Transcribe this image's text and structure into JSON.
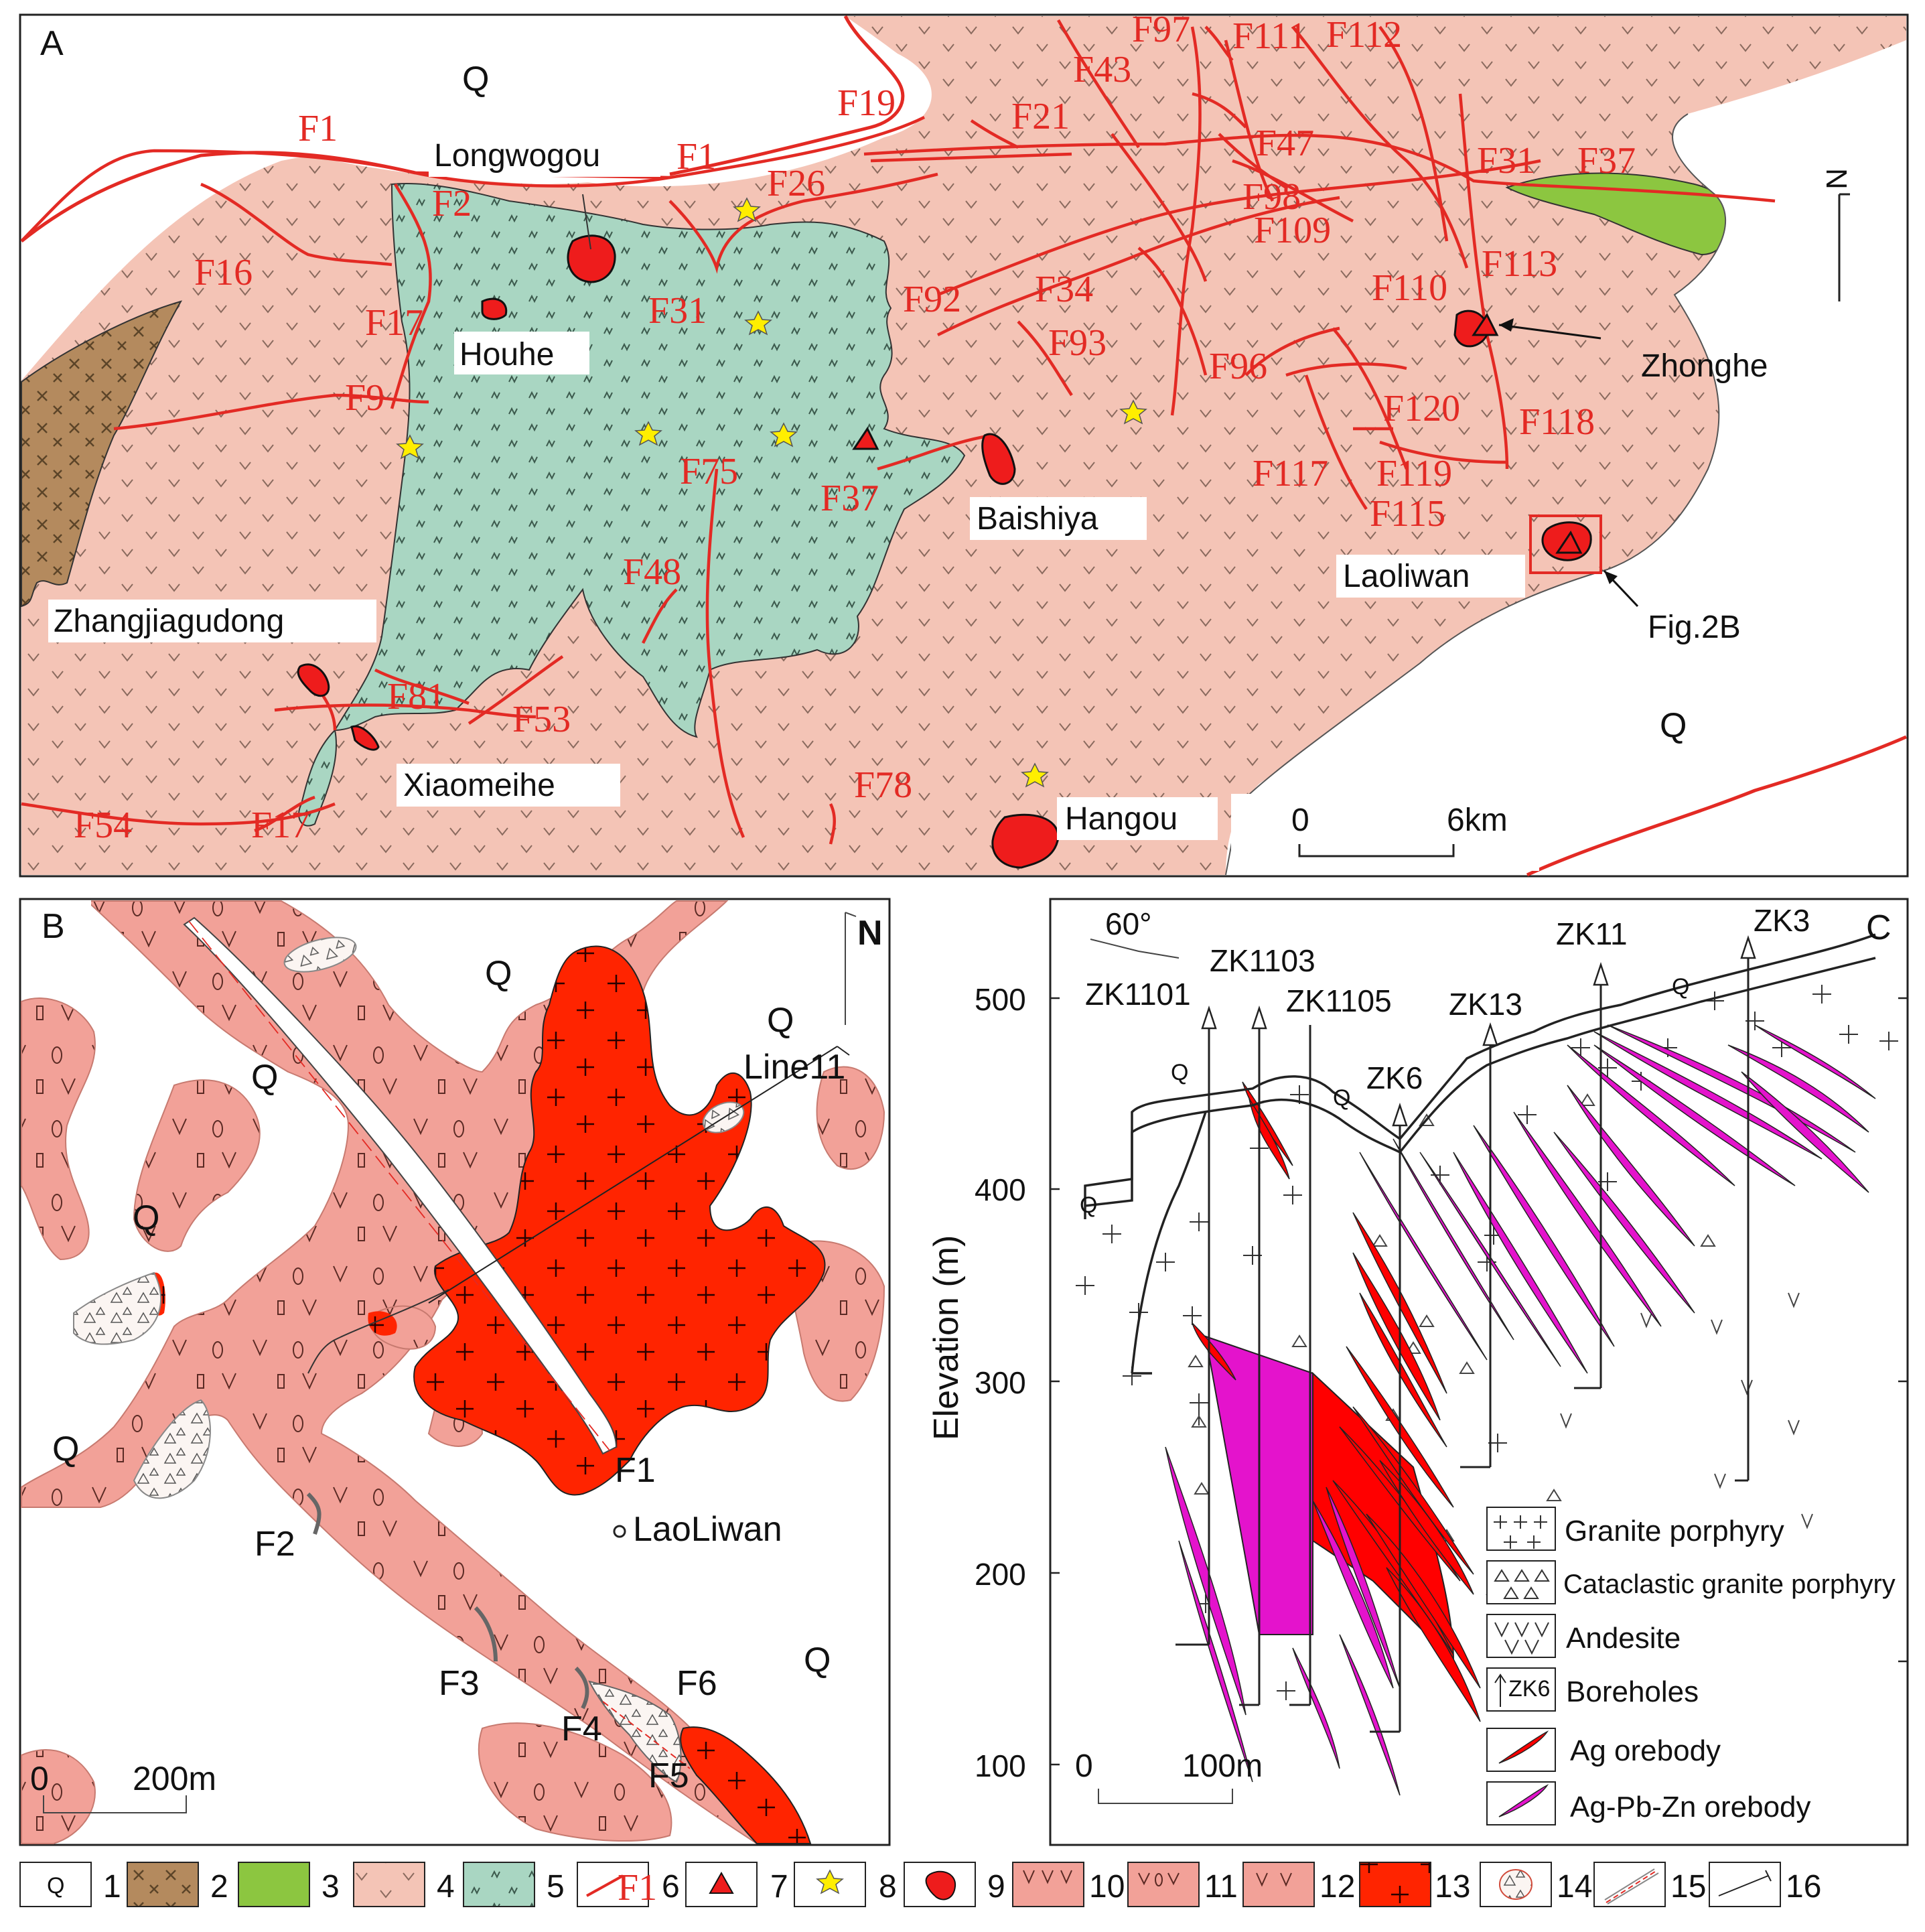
{
  "panel_a": {
    "panel_letter": "A",
    "quaternary_labels": [
      "Q",
      "Q"
    ],
    "north_label": "N",
    "scale": {
      "start": "0",
      "end": "6km"
    },
    "faults": [
      "F1",
      "F1",
      "F2",
      "F16",
      "F17",
      "F9",
      "F19",
      "F26",
      "F31",
      "F43",
      "F21",
      "F97",
      "F111",
      "F112",
      "F47",
      "F31",
      "F37",
      "F98",
      "F109",
      "F113",
      "F110",
      "F92",
      "F34",
      "F93",
      "F96",
      "F120",
      "F118",
      "F117",
      "F119",
      "F115",
      "F75",
      "F37",
      "F48",
      "F81",
      "F53",
      "F78",
      "F54",
      "F17"
    ],
    "deposits": {
      "longwogou": "Longwogou",
      "houhe": "Houhe",
      "zhongue": "Zhonghe",
      "baishiya": "Baishiya",
      "laoliwan": "Laoliwan",
      "zhangjiagudong": "Zhangjiagudong",
      "xiaomeihe": "Xiaomeihe",
      "hangou": "Hangou"
    },
    "figure_ref": "Fig.2B"
  },
  "panel_b": {
    "panel_letter": "B",
    "north_label": "N",
    "q_labels": [
      "Q",
      "Q",
      "Q",
      "Q",
      "Q",
      "Q"
    ],
    "line_label": "Line11",
    "faults": [
      "F1",
      "F2",
      "F3",
      "F4",
      "F5",
      "F6"
    ],
    "place": "LaoLiwan",
    "scale": {
      "start": "0",
      "end": "200m"
    }
  },
  "panel_c": {
    "panel_letter": "C",
    "angle": "60°",
    "y_axis_title": "Elevation (m)",
    "y_ticks": [
      "500",
      "400",
      "300",
      "200",
      "100"
    ],
    "q_labels": [
      "Q",
      "Q",
      "Q",
      "Q"
    ],
    "boreholes": [
      "ZK1101",
      "ZK1103",
      "ZK1105",
      "ZK6",
      "ZK13",
      "ZK11",
      "ZK3"
    ],
    "scale": {
      "start": "0",
      "end": "100m"
    },
    "legend": [
      {
        "label": "Granite porphyry"
      },
      {
        "label": "Cataclastic granite porphyry"
      },
      {
        "label": "Andesite"
      },
      {
        "label": "Boreholes",
        "symbol_text": "ZK6"
      },
      {
        "label": "Ag orebody"
      },
      {
        "label": "Ag-Pb-Zn orebody"
      }
    ]
  },
  "bottom_legend": {
    "q_symbol": "Q",
    "fault_symbol": "F1",
    "numbers": [
      "1",
      "2",
      "3",
      "4",
      "5",
      "6",
      "7",
      "8",
      "9",
      "10",
      "11",
      "12",
      "13",
      "14",
      "15",
      "16"
    ]
  },
  "colors": {
    "andesite_a": "#f4c4b6",
    "schist": "#a9d6c2",
    "brown_unit": "#b48a5e",
    "green_unit": "#8cc640",
    "fault": "#e32a24",
    "orebody": "#ee1c1c",
    "star": "#ffee00",
    "panel_b_pink": "#f2a198",
    "panel_b_red": "#ff2400",
    "magenta": "#e413cc"
  }
}
